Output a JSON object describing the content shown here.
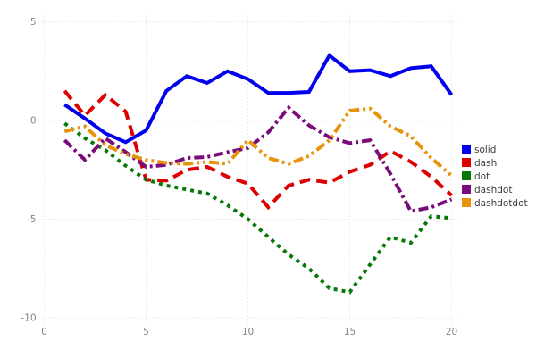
{
  "chart_data": {
    "type": "line",
    "title": "",
    "xlabel": "",
    "ylabel": "",
    "xlim": [
      0,
      20
    ],
    "ylim": [
      -10,
      5
    ],
    "xticks": [
      0,
      5,
      10,
      15,
      20
    ],
    "yticks": [
      5,
      0,
      -5,
      -10
    ],
    "grid": "dotted",
    "legend_position": "right-middle",
    "x": [
      1,
      2,
      3,
      4,
      5,
      6,
      7,
      8,
      9,
      10,
      11,
      12,
      13,
      14,
      15,
      16,
      17,
      18,
      19,
      20
    ],
    "series": [
      {
        "name": "solid",
        "color": "#0000ee",
        "dash_pattern": "",
        "values": [
          0.8,
          0.1,
          -0.65,
          -1.1,
          -0.5,
          1.5,
          2.25,
          1.9,
          2.5,
          2.1,
          1.4,
          1.4,
          1.45,
          3.3,
          2.5,
          2.55,
          2.25,
          2.65,
          2.75,
          1.3
        ]
      },
      {
        "name": "dash",
        "color": "#dd0000",
        "dash_pattern": "12 7",
        "values": [
          1.5,
          0.25,
          1.3,
          0.45,
          -3.0,
          -3.05,
          -2.5,
          -2.35,
          -2.85,
          -3.2,
          -4.4,
          -3.3,
          -3.0,
          -3.15,
          -2.6,
          -2.25,
          -1.55,
          -2.1,
          -2.85,
          -3.8
        ]
      },
      {
        "name": "dot",
        "color": "#067806",
        "dash_pattern": "4 5",
        "values": [
          -0.15,
          -0.9,
          -1.5,
          -2.3,
          -3.0,
          -3.3,
          -3.5,
          -3.7,
          -4.3,
          -5.0,
          -5.9,
          -6.8,
          -7.5,
          -8.5,
          -8.7,
          -7.3,
          -5.9,
          -6.2,
          -4.85,
          -4.95
        ]
      },
      {
        "name": "dashdot",
        "color": "#7a0b7a",
        "dash_pattern": "11 4 3 4",
        "values": [
          -1.0,
          -2.0,
          -0.9,
          -1.6,
          -2.35,
          -2.25,
          -1.9,
          -1.85,
          -1.6,
          -1.4,
          -0.6,
          0.65,
          -0.25,
          -0.85,
          -1.15,
          -1.0,
          -2.7,
          -4.6,
          -4.4,
          -4.0
        ]
      },
      {
        "name": "dashdotdot",
        "color": "#e8940a",
        "dash_pattern": "11 4 3 4 3 4",
        "values": [
          -0.55,
          -0.3,
          -1.25,
          -1.7,
          -2.0,
          -2.15,
          -2.2,
          -2.1,
          -2.2,
          -1.0,
          -1.9,
          -2.2,
          -1.8,
          -1.0,
          0.5,
          0.6,
          -0.3,
          -0.8,
          -1.9,
          -2.8
        ]
      }
    ],
    "legend_labels": [
      "solid",
      "dash",
      "dot",
      "dashdot",
      "dashdotdot"
    ],
    "colors": {
      "grid": "#d9d9d9",
      "tick_label": "#858585",
      "legend_text": "#3a3a3a",
      "background": "#ffffff"
    }
  }
}
